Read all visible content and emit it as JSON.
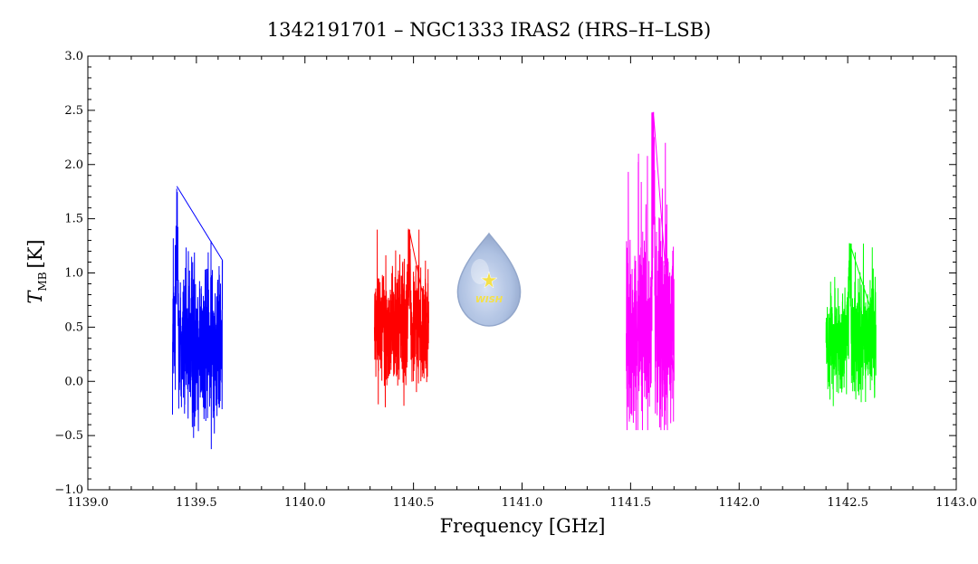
{
  "chart_data": {
    "type": "line",
    "title": "1342191701 – NGC1333 IRAS2 (HRS–H–LSB)",
    "xlabel": "Frequency [GHz]",
    "ylabel_main": "T",
    "ylabel_sub": "MB",
    "ylabel_unit": "[K]",
    "xlim": [
      1139.0,
      1143.0
    ],
    "ylim": [
      -1.0,
      3.0
    ],
    "x_ticks": [
      "1139.0",
      "1139.5",
      "1140.0",
      "1140.5",
      "1141.0",
      "1141.5",
      "1142.0",
      "1142.5",
      "1143.0"
    ],
    "y_ticks": [
      "-1.0",
      "-0.5",
      "0.0",
      "0.5",
      "1.0",
      "1.5",
      "2.0",
      "2.5",
      "3.0"
    ],
    "grid": false,
    "series": [
      {
        "color": "#0000ff",
        "x_range": [
          1139.39,
          1139.62
        ],
        "baseline": 0.35,
        "noise_min": -0.75,
        "noise_max": 1.8,
        "peak_x": 1139.41,
        "peak_y": 1.8
      },
      {
        "color": "#ff0000",
        "x_range": [
          1140.32,
          1140.57
        ],
        "baseline": 0.48,
        "noise_min": -0.45,
        "noise_max": 1.4,
        "peak_x": 1140.48,
        "peak_y": 1.4
      },
      {
        "color": "#ff00ff",
        "x_range": [
          1141.48,
          1141.7
        ],
        "baseline": 0.45,
        "noise_min": -0.45,
        "noise_max": 2.48,
        "peak_x": 1141.605,
        "peak_y": 2.48
      },
      {
        "color": "#00ff00",
        "x_range": [
          1142.4,
          1142.63
        ],
        "baseline": 0.38,
        "noise_min": -0.48,
        "noise_max": 1.27,
        "peak_x": 1142.51,
        "peak_y": 1.27
      }
    ]
  },
  "logo": {
    "text": "WISH",
    "color": "#9fb4d8"
  }
}
